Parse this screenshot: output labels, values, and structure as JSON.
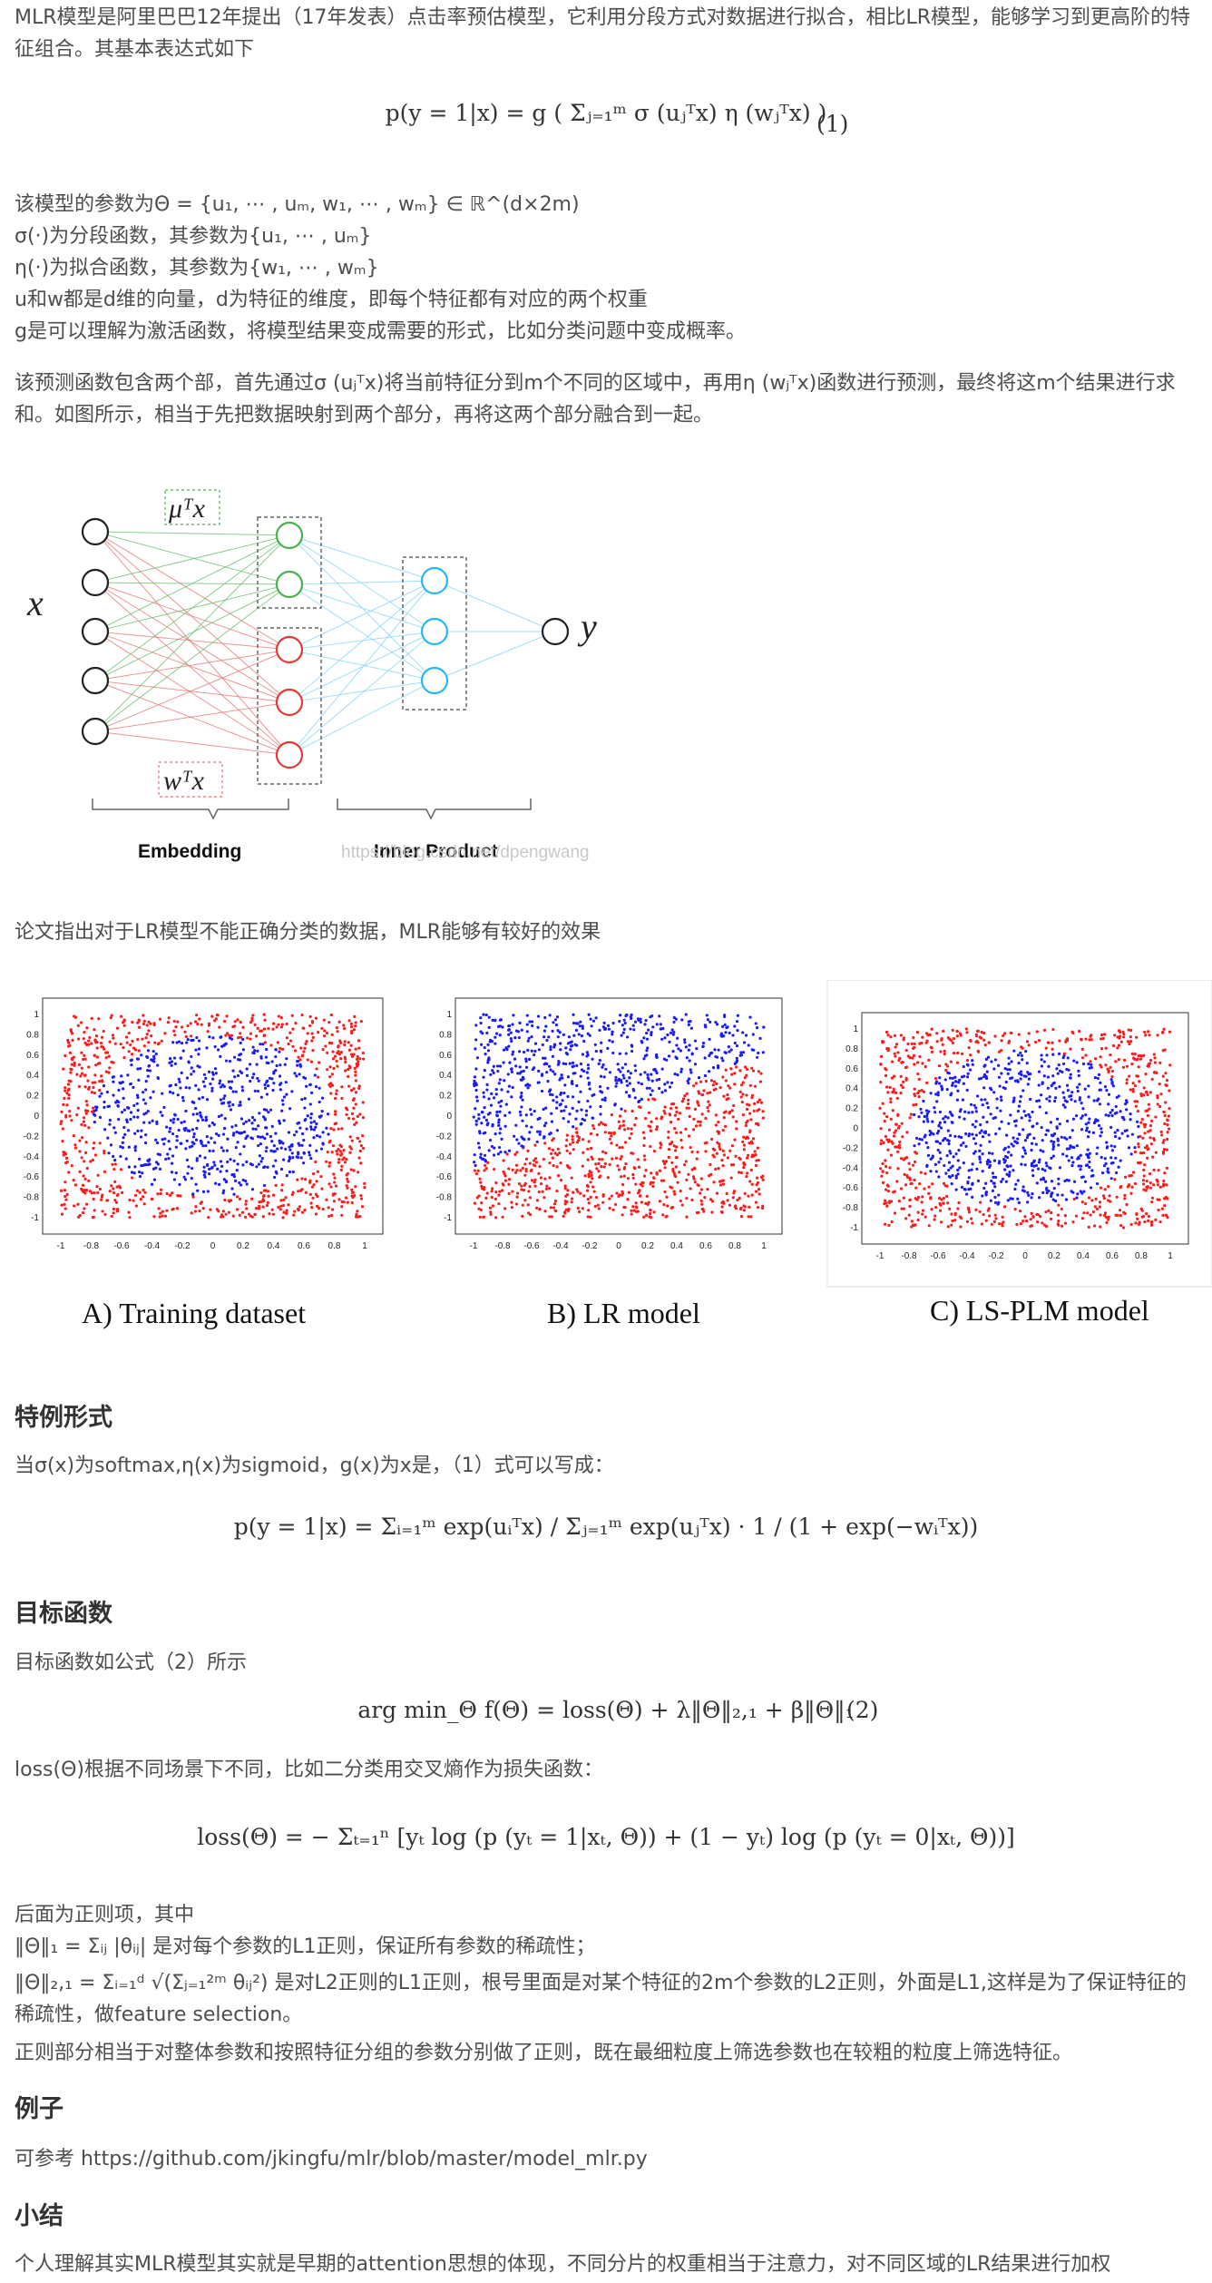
{
  "intro": {
    "para1": "MLR模型是阿里巴巴12年提出（17年发表）点击率预估模型，它利用分段方式对数据进行拟合，相比LR模型，能够学习到更高阶的特征组合。其基本表达式如下",
    "eq1": "p(y = 1|x) = g ( Σⱼ₌₁ᵐ σ (uⱼᵀx) η (wⱼᵀx) )",
    "eq1_num": "(1)",
    "params_line": "该模型的参数为Θ = {u₁, ⋯ , uₘ, w₁, ⋯ , wₘ} ∈ ℝ^(d×2m)",
    "sigma_line": "σ(·)为分段函数，其参数为{u₁, ⋯ , uₘ}",
    "eta_line": "η(·)为拟合函数，其参数为{w₁, ⋯ , wₘ}",
    "uw_line": "u和w都是d维的向量，d为特征的维度，即每个特征都有对应的两个权重",
    "g_line": "g是可以理解为激活函数，将模型结果变成需要的形式，比如分类问题中变成概率。",
    "para2": "该预测函数包含两个部，首先通过σ (uⱼᵀx)将当前特征分到m个不同的区域中，再用η (wⱼᵀx)函数进行预测，最终将这m个结果进行求和。如图所示，相当于先把数据映射到两个部分，再将这两个部分融合到一起。"
  },
  "figure1": {
    "label_x": "x",
    "label_y": "y",
    "label_u": "μᵀx",
    "label_w": "wᵀx",
    "label_embedding": "Embedding",
    "label_inner": "Inner Product",
    "watermark": "https://blog.csdn.net/dpengwang"
  },
  "para3": "论文指出对于LR模型不能正确分类的数据，MLR能够有较好的效果",
  "figure2": {
    "ticks": [
      "-1",
      "-0.8",
      "-0.6",
      "-0.4",
      "-0.2",
      "0",
      "0.2",
      "0.4",
      "0.6",
      "0.8",
      "1"
    ],
    "captions": [
      "A) Training dataset",
      "B) LR model",
      "C) LS-PLM model"
    ],
    "colors": {
      "red": "#ff1a1a",
      "blue": "#1a1aff"
    }
  },
  "special": {
    "heading": "特例形式",
    "line": "当σ(x)为softmax,η(x)为sigmoid，g(x)为x是，（1）式可以写成：",
    "eq": "p(y = 1|x) = Σᵢ₌₁ᵐ  exp(uᵢᵀx) / Σⱼ₌₁ᵐ exp(uⱼᵀx)  ·  1 / (1 + exp(−wᵢᵀx))"
  },
  "objective": {
    "heading": "目标函数",
    "line": "目标函数如公式（2）所示",
    "eq2": "arg min_Θ f(Θ) = loss(Θ) + λ‖Θ‖₂,₁ + β‖Θ‖₁",
    "eq2_num": "(2)",
    "loss_line": "loss(Θ)根据不同场景下不同，比如二分类用交叉熵作为损失函数：",
    "loss_eq": "loss(Θ) = − Σₜ₌₁ⁿ [yₜ log (p (yₜ = 1|xₜ, Θ)) + (1 − yₜ) log (p (yₜ = 0|xₜ, Θ))]",
    "reg_intro": "后面为正则项，其中",
    "l1_line": "‖Θ‖₁ = Σᵢⱼ |θᵢⱼ| 是对每个参数的L1正则，保证所有参数的稀疏性；",
    "l21_line": "‖Θ‖₂,₁ = Σᵢ₌₁ᵈ √(Σⱼ₌₁²ᵐ θᵢⱼ²) 是对L2正则的L1正则，根号里面是对某个特征的2m个参数的L2正则，外面是L1,这样是为了保证特征的稀疏性，做feature selection。",
    "summary_line": "正则部分相当于对整体参数和按照特征分组的参数分别做了正则，既在最细粒度上筛选参数也在较粗的粒度上筛选特征。"
  },
  "example": {
    "heading": "例子",
    "line": "可参考 https://github.com/jkingfu/mlr/blob/master/model_mlr.py"
  },
  "conclusion": {
    "heading": "小结",
    "line": "个人理解其实MLR模型其实就是早期的attention思想的体现，不同分片的权重相当于注意力，对不同区域的LR结果进行加权"
  }
}
